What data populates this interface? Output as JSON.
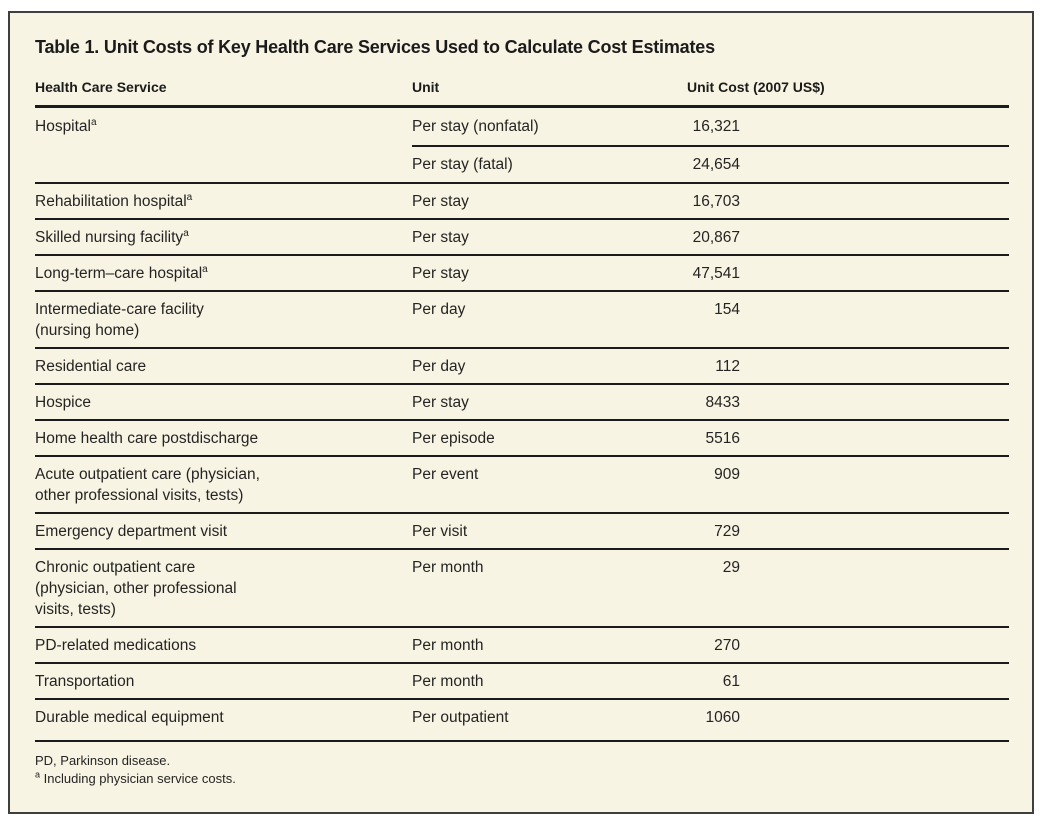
{
  "table": {
    "title": "Table 1. Unit Costs of Key Health Care Services Used to Calculate Cost Estimates",
    "columns": [
      "Health Care Service",
      "Unit",
      "Unit Cost (2007 US$)"
    ],
    "rows": [
      {
        "service": "Hospital",
        "sup": "a",
        "sub": [
          {
            "unit": "Per stay (nonfatal)",
            "cost": "16,321"
          },
          {
            "unit": "Per stay (fatal)",
            "cost": "24,654"
          }
        ]
      },
      {
        "service": "Rehabilitation hospital",
        "sup": "a",
        "unit": "Per stay",
        "cost": "16,703"
      },
      {
        "service": "Skilled nursing facility",
        "sup": "a",
        "unit": "Per stay",
        "cost": "20,867"
      },
      {
        "service": "Long-term–care hospital",
        "sup": "a",
        "unit": "Per stay",
        "cost": "47,541"
      },
      {
        "service": "Intermediate-care facility\n(nursing home)",
        "unit": "Per day",
        "cost": "154"
      },
      {
        "service": "Residential care",
        "unit": "Per day",
        "cost": "112"
      },
      {
        "service": "Hospice",
        "unit": "Per stay",
        "cost": "8433"
      },
      {
        "service": "Home health care postdischarge",
        "unit": "Per episode",
        "cost": "5516"
      },
      {
        "service": "Acute outpatient care (physician,\nother professional visits, tests)",
        "unit": "Per event",
        "cost": "909"
      },
      {
        "service": "Emergency department visit",
        "unit": "Per visit",
        "cost": "729"
      },
      {
        "service": "Chronic outpatient care\n(physician, other professional\nvisits, tests)",
        "unit": "Per month",
        "cost": "29"
      },
      {
        "service": "PD-related medications",
        "unit": "Per month",
        "cost": "270"
      },
      {
        "service": "Transportation",
        "unit": "Per month",
        "cost": "61"
      },
      {
        "service": "Durable medical equipment",
        "unit": "Per outpatient",
        "cost": "1060",
        "tall": true
      }
    ],
    "footnotes": [
      "PD, Parkinson disease."
    ],
    "footnote_a": {
      "marker": "a",
      "text": "Including physician service costs."
    },
    "colors": {
      "panel_background": "#f8f4e3",
      "border": "#3f3f3f",
      "rule": "#1b1b1b",
      "text": "#242424"
    }
  }
}
